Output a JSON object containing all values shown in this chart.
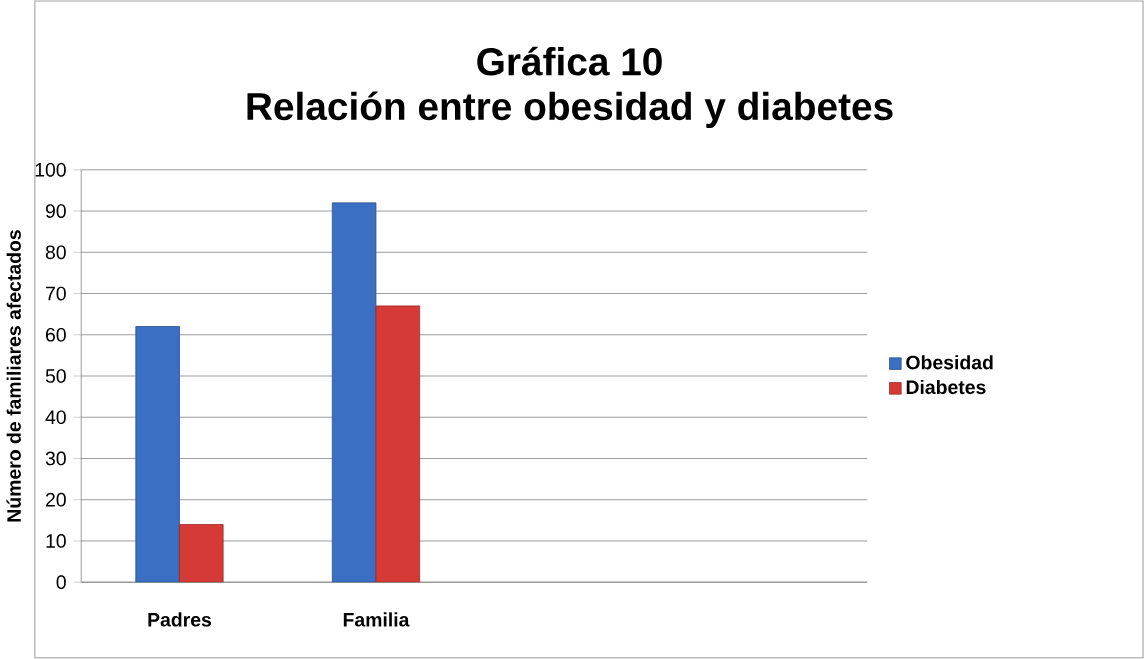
{
  "chart_data": {
    "type": "bar",
    "title": "Gráfica 10",
    "subtitle": "Relación entre obesidad y diabetes",
    "ylabel": "Número de familiares afectados",
    "categories": [
      "Padres",
      "Familia",
      null,
      null
    ],
    "series": [
      {
        "name": "Obesidad",
        "color": "#3a6fc4",
        "values": [
          62,
          92,
          null,
          null
        ]
      },
      {
        "name": "Diabetes",
        "color": "#d63a36",
        "values": [
          14,
          67,
          null,
          null
        ]
      }
    ],
    "ylim": [
      0,
      100
    ],
    "yticks": [
      0,
      10,
      20,
      30,
      40,
      50,
      60,
      70,
      80,
      90,
      100
    ],
    "grid": "y",
    "legend": "right"
  }
}
